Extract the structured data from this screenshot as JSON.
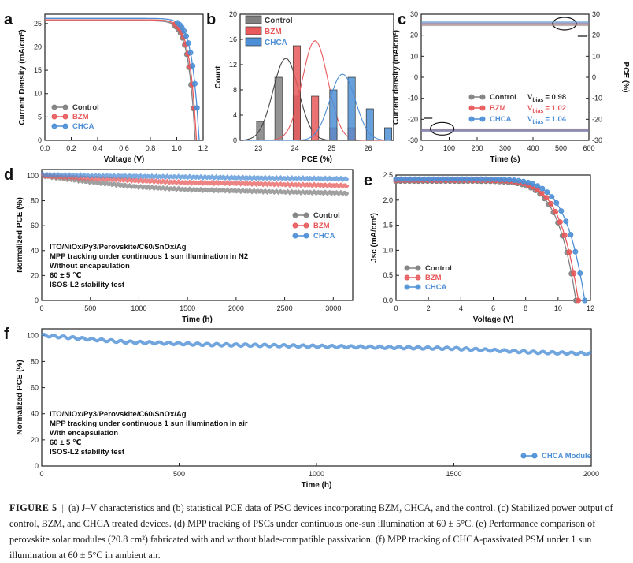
{
  "colors": {
    "control": "#808080",
    "bzm": "#e8595b",
    "chca": "#4d8fd6",
    "axis": "#222222"
  },
  "caption": {
    "label": "FIGURE  5",
    "separator": "|",
    "text": "(a) J–V characteristics and (b) statistical PCE data of PSC devices incorporating BZM, CHCA, and the control. (c) Stabilized power output of control, BZM, and CHCA treated devices. (d) MPP tracking of PSCs under continuous one-sun illumination at 60 ± 5°C. (e) Performance comparison of perovskite solar modules (20.8 cm²) fabricated with and without blade-compatible passivation. (f) MPP tracking of CHCA-passivated PSM under 1 sun illumination at 60 ± 5°C in ambient air."
  },
  "chart_data": [
    {
      "panel": "a",
      "type": "line",
      "xlabel": "Voltage (V)",
      "ylabel": "Current Density (mA/cm²)",
      "xlim": [
        0,
        1.2
      ],
      "ylim": [
        0,
        27
      ],
      "xticks": [
        "0.0",
        "0.2",
        "0.4",
        "0.6",
        "0.8",
        "1.0",
        "1.2"
      ],
      "yticks": [
        "0",
        "5",
        "10",
        "15",
        "20",
        "25"
      ],
      "legend": [
        "Control",
        "BZM",
        "CHCA"
      ],
      "legend_position": "bottom-left",
      "series": [
        {
          "name": "Control",
          "jsc": 25.6,
          "voc": 1.14
        },
        {
          "name": "BZM",
          "jsc": 25.8,
          "voc": 1.15
        },
        {
          "name": "CHCA",
          "jsc": 26.1,
          "voc": 1.17
        }
      ]
    },
    {
      "panel": "b",
      "type": "bar",
      "xlabel": "PCE (%)",
      "ylabel": "Count",
      "xlim": [
        22.5,
        26.7
      ],
      "ylim": [
        0,
        20
      ],
      "xticks": [
        "23",
        "24",
        "25",
        "26"
      ],
      "yticks": [
        "0",
        "4",
        "8",
        "12",
        "16",
        "20"
      ],
      "legend": [
        "Control",
        "BZM",
        "CHCA"
      ],
      "legend_position": "top-left",
      "series": [
        {
          "name": "Control",
          "bins": [
            23.0,
            23.5,
            24.0
          ],
          "counts": [
            3,
            10,
            7
          ],
          "fit_mean": 23.75,
          "fit_peak": 13
        },
        {
          "name": "BZM",
          "bins": [
            24.0,
            24.5,
            25.0,
            25.5
          ],
          "counts": [
            15,
            7,
            2,
            2
          ],
          "fit_mean": 24.55,
          "fit_peak": 15.8
        },
        {
          "name": "CHCA",
          "bins": [
            25.0,
            25.5,
            26.0,
            26.5
          ],
          "counts": [
            8,
            10,
            5,
            2
          ],
          "fit_mean": 25.3,
          "fit_peak": 10.5
        }
      ]
    },
    {
      "panel": "c",
      "type": "line",
      "xlabel": "Time (s)",
      "ylabel": "Current density (mA/cm²)",
      "y2label": "PCE (%)",
      "xlim": [
        0,
        600
      ],
      "ylim": [
        -30,
        30
      ],
      "xticks": [
        "0",
        "100",
        "200",
        "300",
        "400",
        "500",
        "600"
      ],
      "yticks": [
        "-30",
        "-20",
        "-10",
        "0",
        "10",
        "20",
        "30"
      ],
      "legend": [
        "Control",
        "BZM",
        "CHCA"
      ],
      "legend_position": "bottom-left",
      "vbias_label": "V",
      "vbias_sub": "bias",
      "vbias": [
        "= 0.98",
        "= 1.02",
        "= 1.04"
      ],
      "series": [
        {
          "name": "Control",
          "pce": 24.9,
          "current": -24.9
        },
        {
          "name": "BZM",
          "pce": 25.5,
          "current": -25.3
        },
        {
          "name": "CHCA",
          "pce": 26.1,
          "current": -25.4
        }
      ]
    },
    {
      "panel": "d",
      "type": "line",
      "xlabel": "Time (h)",
      "ylabel": "Normalized PCE (%)",
      "xlim": [
        0,
        3200
      ],
      "ylim": [
        0,
        105
      ],
      "xticks": [
        "0",
        "500",
        "1000",
        "1500",
        "2000",
        "2500",
        "3000"
      ],
      "yticks": [
        "0",
        "20",
        "40",
        "60",
        "80",
        "100"
      ],
      "legend": [
        "Control",
        "BZM",
        "CHCA"
      ],
      "legend_position": "right",
      "annotation": [
        "ITO/NiOx/Py3/Perovskite/C60/SnOx/Ag",
        "MPP tracking under continuous 1 sun illumination in N2",
        "Without encapsulation",
        "60 ± 5 ℃",
        "ISOS-L2 stability test"
      ],
      "series": [
        {
          "name": "Control",
          "x": [
            0,
            500,
            1000,
            1500,
            2000,
            2500,
            3150
          ],
          "y": [
            100,
            95,
            91,
            89,
            88,
            87,
            86
          ]
        },
        {
          "name": "BZM",
          "x": [
            0,
            500,
            1000,
            1500,
            2000,
            2500,
            3150
          ],
          "y": [
            100,
            98,
            96,
            94.5,
            94,
            93,
            92
          ]
        },
        {
          "name": "CHCA",
          "x": [
            0,
            500,
            1000,
            1500,
            2000,
            2500,
            3150
          ],
          "y": [
            101,
            100,
            99.5,
            99,
            98.5,
            98,
            97.5
          ]
        }
      ]
    },
    {
      "panel": "e",
      "type": "line",
      "xlabel": "Voltage (V)",
      "ylabel": "Jsc (mA/cm²)",
      "xlim": [
        0,
        12
      ],
      "ylim": [
        0,
        2.5
      ],
      "xticks": [
        "0",
        "2",
        "4",
        "6",
        "8",
        "10",
        "12"
      ],
      "yticks": [
        "0.0",
        "0.5",
        "1.0",
        "1.5",
        "2.0",
        "2.5"
      ],
      "legend": [
        "Control",
        "BZM",
        "CHCA"
      ],
      "legend_position": "bottom-left",
      "series": [
        {
          "name": "Control",
          "jsc": 2.38,
          "voc": 11.1
        },
        {
          "name": "BZM",
          "jsc": 2.4,
          "voc": 11.25
        },
        {
          "name": "CHCA",
          "jsc": 2.42,
          "voc": 11.65
        }
      ]
    },
    {
      "panel": "f",
      "type": "line",
      "xlabel": "Time (h)",
      "ylabel": "Normalized PCE (%)",
      "xlim": [
        0,
        2000
      ],
      "ylim": [
        0,
        105
      ],
      "xticks": [
        "0",
        "500",
        "1000",
        "1500",
        "2000"
      ],
      "yticks": [
        "0",
        "20",
        "40",
        "60",
        "80",
        "100"
      ],
      "legend": [
        "CHCA Module"
      ],
      "legend_position": "bottom-right",
      "annotation": [
        "ITO/NiOx/Py3/Perovskite/C60/SnOx/Ag",
        "MPP tracking under continuous 1 sun illumination in air",
        "With encapsulation",
        "60 ± 5 ℃",
        "ISOS-L2 stability test"
      ],
      "series": [
        {
          "name": "CHCA Module",
          "x": [
            0,
            300,
            600,
            900,
            1200,
            1500,
            1800,
            2000
          ],
          "y": [
            100,
            95,
            93,
            92,
            91,
            90,
            87,
            86
          ]
        }
      ]
    }
  ]
}
